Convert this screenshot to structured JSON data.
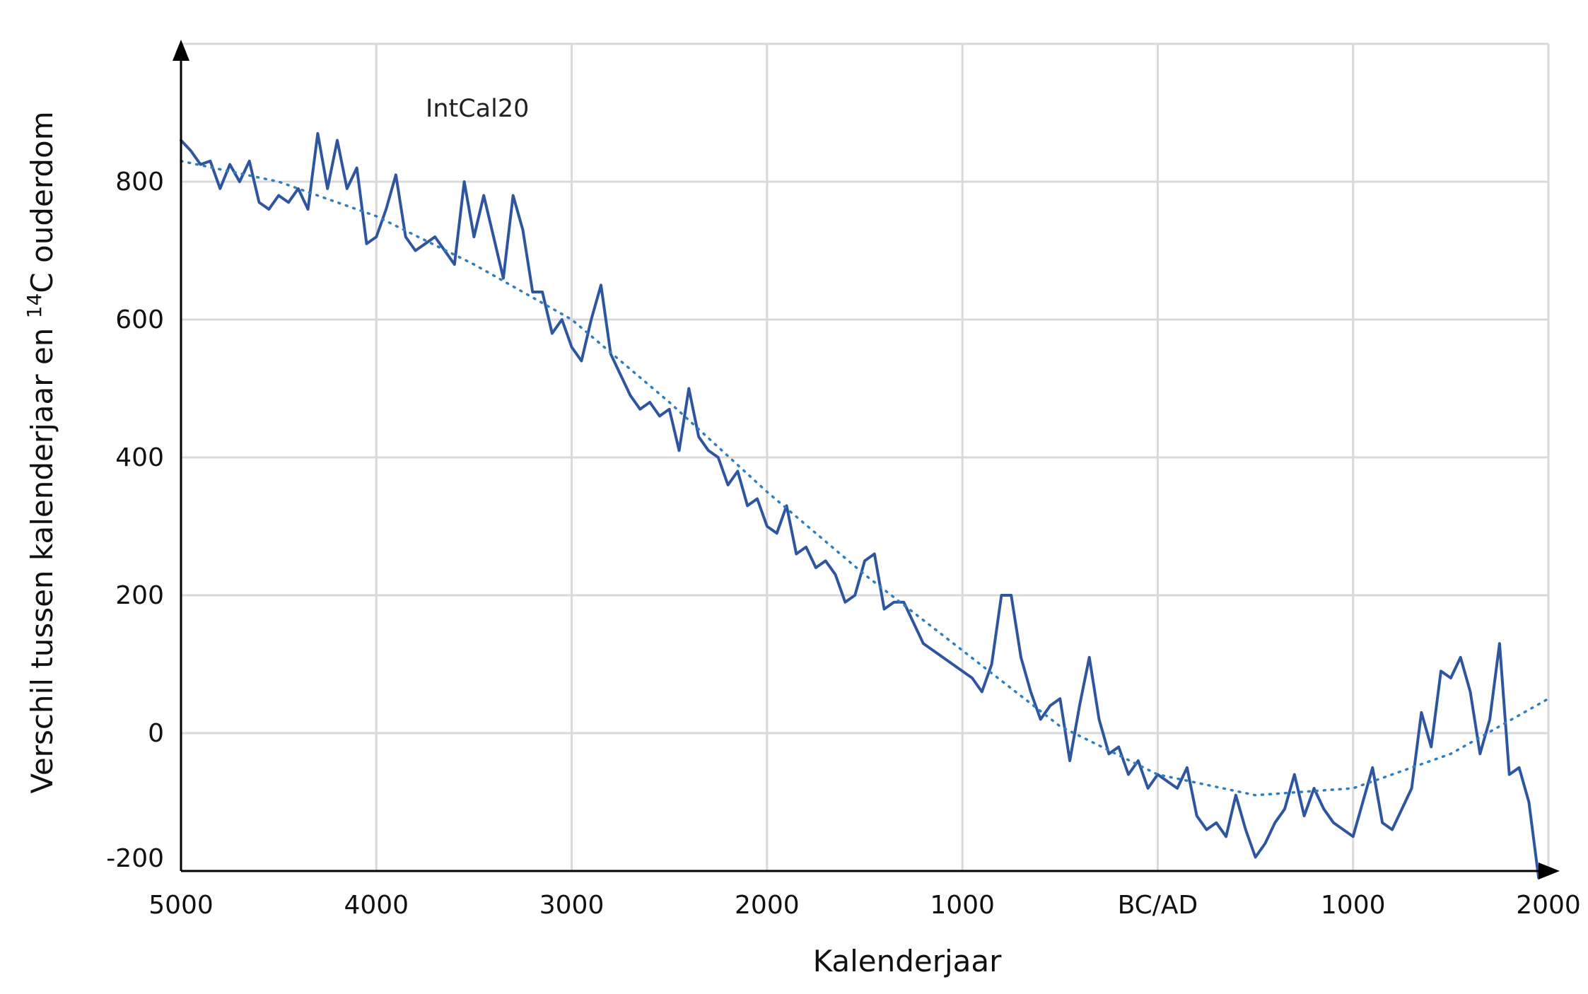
{
  "chart_data": {
    "type": "line",
    "annotation": "IntCal20",
    "xlabel": "Kalenderjaar",
    "ylabel_prefix": "Verschil  tussen kalenderjaar en ",
    "ylabel_sup": "14",
    "ylabel_suffix": "C ouderdom",
    "xlim": [
      -5000,
      2000
    ],
    "ylim": [
      -200,
      1000
    ],
    "x_ticks": [
      {
        "value": -5000,
        "label": "5000"
      },
      {
        "value": -4000,
        "label": "4000"
      },
      {
        "value": -3000,
        "label": "3000"
      },
      {
        "value": -2000,
        "label": "2000"
      },
      {
        "value": -1000,
        "label": "1000"
      },
      {
        "value": 0,
        "label": "BC/AD"
      },
      {
        "value": 1000,
        "label": "1000"
      },
      {
        "value": 2000,
        "label": "2000"
      }
    ],
    "y_ticks": [
      {
        "value": 800,
        "label": "800"
      },
      {
        "value": 600,
        "label": "600"
      },
      {
        "value": 400,
        "label": "400"
      },
      {
        "value": 200,
        "label": "200"
      },
      {
        "value": 0,
        "label": "0"
      },
      {
        "value": -200,
        "label": "-200"
      }
    ],
    "grid": true,
    "colors": {
      "series": "#2e55a0",
      "trend": "#2f7fc0",
      "grid": "#d9d9d9",
      "axis": "#000000"
    },
    "series": [
      {
        "style": "solid",
        "x": [
          -5000,
          -4950,
          -4900,
          -4850,
          -4800,
          -4750,
          -4700,
          -4650,
          -4600,
          -4550,
          -4500,
          -4450,
          -4400,
          -4350,
          -4300,
          -4250,
          -4200,
          -4150,
          -4100,
          -4050,
          -4000,
          -3950,
          -3900,
          -3850,
          -3800,
          -3750,
          -3700,
          -3650,
          -3600,
          -3550,
          -3500,
          -3450,
          -3400,
          -3350,
          -3300,
          -3250,
          -3200,
          -3150,
          -3100,
          -3050,
          -3000,
          -2950,
          -2900,
          -2850,
          -2800,
          -2750,
          -2700,
          -2650,
          -2600,
          -2550,
          -2500,
          -2450,
          -2400,
          -2350,
          -2300,
          -2250,
          -2200,
          -2150,
          -2100,
          -2050,
          -2000,
          -1950,
          -1900,
          -1850,
          -1800,
          -1750,
          -1700,
          -1650,
          -1600,
          -1550,
          -1500,
          -1450,
          -1400,
          -1350,
          -1300,
          -1250,
          -1200,
          -1150,
          -1100,
          -1050,
          -1000,
          -950,
          -900,
          -850,
          -800,
          -750,
          -700,
          -650,
          -600,
          -550,
          -500,
          -450,
          -400,
          -350,
          -300,
          -250,
          -200,
          -150,
          -100,
          -50,
          0,
          50,
          100,
          150,
          200,
          250,
          300,
          350,
          400,
          450,
          500,
          550,
          600,
          650,
          700,
          750,
          800,
          850,
          900,
          950,
          1000,
          1050,
          1100,
          1150,
          1200,
          1250,
          1300,
          1350,
          1400,
          1450,
          1500,
          1550,
          1600,
          1650,
          1700,
          1750,
          1800,
          1850,
          1900,
          1950
        ],
        "values": [
          860,
          845,
          825,
          830,
          790,
          825,
          800,
          830,
          770,
          760,
          780,
          770,
          790,
          760,
          870,
          790,
          860,
          790,
          820,
          710,
          720,
          760,
          810,
          720,
          700,
          710,
          720,
          700,
          680,
          800,
          720,
          780,
          720,
          660,
          780,
          730,
          640,
          640,
          580,
          600,
          560,
          540,
          600,
          650,
          550,
          520,
          490,
          470,
          480,
          460,
          470,
          410,
          500,
          430,
          410,
          400,
          360,
          380,
          330,
          340,
          300,
          290,
          330,
          260,
          270,
          240,
          250,
          230,
          190,
          200,
          250,
          260,
          180,
          190,
          190,
          160,
          130,
          120,
          110,
          100,
          90,
          80,
          60,
          100,
          200,
          200,
          110,
          60,
          20,
          40,
          50,
          -40,
          40,
          110,
          20,
          -30,
          -20,
          -60,
          -40,
          -80,
          -60,
          -70,
          -80,
          -50,
          -120,
          -140,
          -130,
          -150,
          -90,
          -140,
          -180,
          -160,
          -130,
          -110,
          -60,
          -120,
          -80,
          -110,
          -130,
          -140,
          -150,
          -100,
          -50,
          -130,
          -140,
          -110,
          -80,
          30,
          -20,
          90,
          80,
          110,
          60,
          -30,
          20,
          130,
          -60,
          -50,
          -100,
          -210
        ]
      },
      {
        "style": "dotted",
        "x": [
          -5000,
          -4500,
          -4000,
          -3500,
          -3000,
          -2500,
          -2000,
          -1500,
          -1000,
          -500,
          0,
          500,
          1000,
          1500,
          2000
        ],
        "values": [
          830,
          800,
          750,
          680,
          600,
          480,
          350,
          230,
          120,
          10,
          -60,
          -90,
          -80,
          -30,
          50
        ]
      }
    ]
  }
}
